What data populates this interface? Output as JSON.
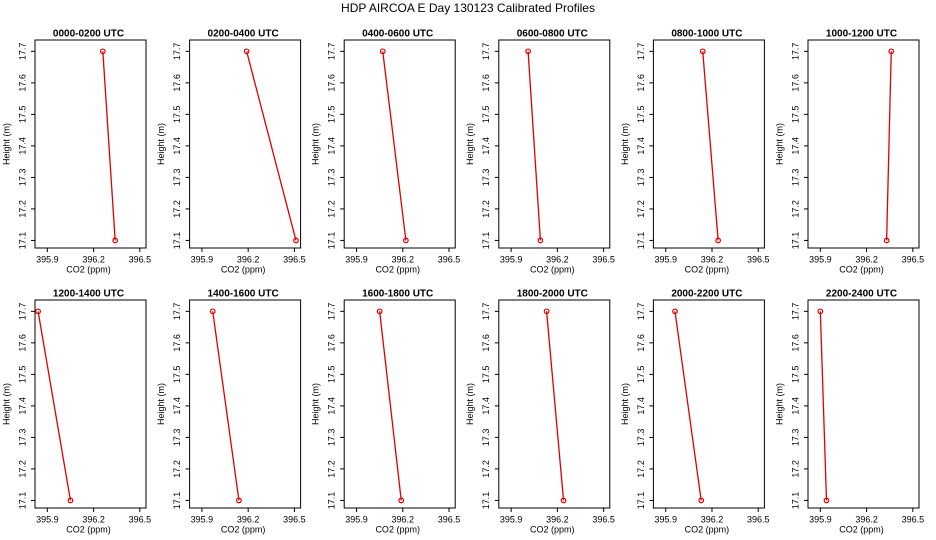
{
  "title": "HDP AIRCOA E  Day 130123  Calibrated Profiles",
  "chart_data": [
    {
      "type": "line",
      "title": "0000-0200 UTC",
      "x_label": "CO2 (ppm)",
      "y_label": "Height (m)",
      "x": [
        396.26,
        396.34
      ],
      "values": [
        17.7,
        17.1
      ],
      "color": "#e00000",
      "xlim": [
        395.82,
        396.54
      ],
      "xticks": [
        395.9,
        396.2,
        396.5
      ],
      "ylim": [
        17.076,
        17.736
      ],
      "yticks": [
        17.1,
        17.2,
        17.3,
        17.4,
        17.5,
        17.6,
        17.7
      ]
    },
    {
      "type": "line",
      "title": "0200-0400 UTC",
      "x_label": "CO2 (ppm)",
      "y_label": "Height (m)",
      "x": [
        396.19,
        396.51
      ],
      "values": [
        17.7,
        17.1
      ],
      "color": "#e00000",
      "xlim": [
        395.82,
        396.54
      ],
      "xticks": [
        395.9,
        396.2,
        396.5
      ],
      "ylim": [
        17.076,
        17.736
      ],
      "yticks": [
        17.1,
        17.2,
        17.3,
        17.4,
        17.5,
        17.6,
        17.7
      ]
    },
    {
      "type": "line",
      "title": "0400-0600 UTC",
      "x_label": "CO2 (ppm)",
      "y_label": "Height (m)",
      "x": [
        396.07,
        396.22
      ],
      "values": [
        17.7,
        17.1
      ],
      "color": "#e00000",
      "xlim": [
        395.82,
        396.54
      ],
      "xticks": [
        395.9,
        396.2,
        396.5
      ],
      "ylim": [
        17.076,
        17.736
      ],
      "yticks": [
        17.1,
        17.2,
        17.3,
        17.4,
        17.5,
        17.6,
        17.7
      ]
    },
    {
      "type": "line",
      "title": "0600-0800 UTC",
      "x_label": "CO2 (ppm)",
      "y_label": "Height (m)",
      "x": [
        396.01,
        396.09
      ],
      "values": [
        17.7,
        17.1
      ],
      "color": "#e00000",
      "xlim": [
        395.82,
        396.54
      ],
      "xticks": [
        395.9,
        396.2,
        396.5
      ],
      "ylim": [
        17.076,
        17.736
      ],
      "yticks": [
        17.1,
        17.2,
        17.3,
        17.4,
        17.5,
        17.6,
        17.7
      ]
    },
    {
      "type": "line",
      "title": "0800-1000 UTC",
      "x_label": "CO2 (ppm)",
      "y_label": "Height (m)",
      "x": [
        396.14,
        396.24
      ],
      "values": [
        17.7,
        17.1
      ],
      "color": "#e00000",
      "xlim": [
        395.82,
        396.54
      ],
      "xticks": [
        395.9,
        396.2,
        396.5
      ],
      "ylim": [
        17.076,
        17.736
      ],
      "yticks": [
        17.1,
        17.2,
        17.3,
        17.4,
        17.5,
        17.6,
        17.7
      ]
    },
    {
      "type": "line",
      "title": "1000-1200 UTC",
      "x_label": "CO2 (ppm)",
      "y_label": "Height (m)",
      "x": [
        396.36,
        396.33
      ],
      "values": [
        17.7,
        17.1
      ],
      "color": "#e00000",
      "xlim": [
        395.82,
        396.54
      ],
      "xticks": [
        395.9,
        396.2,
        396.5
      ],
      "ylim": [
        17.076,
        17.736
      ],
      "yticks": [
        17.1,
        17.2,
        17.3,
        17.4,
        17.5,
        17.6,
        17.7
      ]
    },
    {
      "type": "line",
      "title": "1200-1400 UTC",
      "x_label": "CO2 (ppm)",
      "y_label": "Height (m)",
      "x": [
        395.84,
        396.05
      ],
      "values": [
        17.7,
        17.1
      ],
      "color": "#e00000",
      "xlim": [
        395.82,
        396.54
      ],
      "xticks": [
        395.9,
        396.2,
        396.5
      ],
      "ylim": [
        17.076,
        17.736
      ],
      "yticks": [
        17.1,
        17.2,
        17.3,
        17.4,
        17.5,
        17.6,
        17.7
      ]
    },
    {
      "type": "line",
      "title": "1400-1600 UTC",
      "x_label": "CO2 (ppm)",
      "y_label": "Height (m)",
      "x": [
        395.97,
        396.14
      ],
      "values": [
        17.7,
        17.1
      ],
      "color": "#e00000",
      "xlim": [
        395.82,
        396.54
      ],
      "xticks": [
        395.9,
        396.2,
        396.5
      ],
      "ylim": [
        17.076,
        17.736
      ],
      "yticks": [
        17.1,
        17.2,
        17.3,
        17.4,
        17.5,
        17.6,
        17.7
      ]
    },
    {
      "type": "line",
      "title": "1600-1800 UTC",
      "x_label": "CO2 (ppm)",
      "y_label": "Height (m)",
      "x": [
        396.05,
        396.19
      ],
      "values": [
        17.7,
        17.1
      ],
      "color": "#e00000",
      "xlim": [
        395.82,
        396.54
      ],
      "xticks": [
        395.9,
        396.2,
        396.5
      ],
      "ylim": [
        17.076,
        17.736
      ],
      "yticks": [
        17.1,
        17.2,
        17.3,
        17.4,
        17.5,
        17.6,
        17.7
      ]
    },
    {
      "type": "line",
      "title": "1800-2000 UTC",
      "x_label": "CO2 (ppm)",
      "y_label": "Height (m)",
      "x": [
        396.13,
        396.24
      ],
      "values": [
        17.7,
        17.1
      ],
      "color": "#e00000",
      "xlim": [
        395.82,
        396.54
      ],
      "xticks": [
        395.9,
        396.2,
        396.5
      ],
      "ylim": [
        17.076,
        17.736
      ],
      "yticks": [
        17.1,
        17.2,
        17.3,
        17.4,
        17.5,
        17.6,
        17.7
      ]
    },
    {
      "type": "line",
      "title": "2000-2200 UTC",
      "x_label": "CO2 (ppm)",
      "y_label": "Height (m)",
      "x": [
        395.96,
        396.13
      ],
      "values": [
        17.7,
        17.1
      ],
      "color": "#e00000",
      "xlim": [
        395.82,
        396.54
      ],
      "xticks": [
        395.9,
        396.2,
        396.5
      ],
      "ylim": [
        17.076,
        17.736
      ],
      "yticks": [
        17.1,
        17.2,
        17.3,
        17.4,
        17.5,
        17.6,
        17.7
      ]
    },
    {
      "type": "line",
      "title": "2200-2400 UTC",
      "x_label": "CO2 (ppm)",
      "y_label": "Height (m)",
      "x": [
        395.9,
        395.94
      ],
      "values": [
        17.7,
        17.1
      ],
      "color": "#e00000",
      "xlim": [
        395.82,
        396.54
      ],
      "xticks": [
        395.9,
        396.2,
        396.5
      ],
      "ylim": [
        17.076,
        17.736
      ],
      "yticks": [
        17.1,
        17.2,
        17.3,
        17.4,
        17.5,
        17.6,
        17.7
      ]
    }
  ]
}
